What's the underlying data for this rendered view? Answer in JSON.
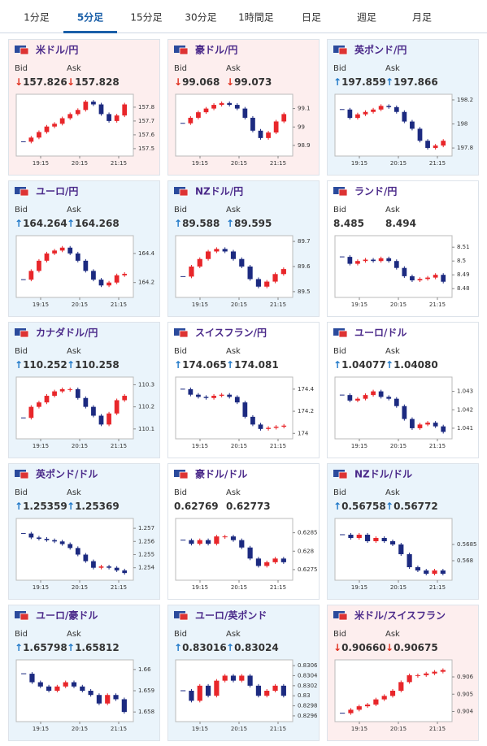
{
  "tabs": {
    "items": [
      "1分足",
      "5分足",
      "15分足",
      "30分足",
      "1時間足",
      "日足",
      "週足",
      "月足"
    ],
    "active": 1
  },
  "bid_label": "Bid",
  "ask_label": "Ask",
  "candle_colors": {
    "up": "#e8262a",
    "down": "#1c2a80"
  },
  "cards": [
    {
      "name": "米ドル/円",
      "bg": "#fdeeee",
      "arrow_color": "#e0301e",
      "bid_arrow": "↓",
      "bid": "157.826",
      "ask_arrow": "↓",
      "ask": "157.828",
      "chart": {
        "ylim": [
          157.47,
          157.87
        ],
        "yticks": [
          157.5,
          157.6,
          157.7,
          157.8
        ],
        "xticks": [
          "19:15",
          "20:15",
          "21:15"
        ],
        "closes": [
          157.55,
          157.58,
          157.62,
          157.66,
          157.68,
          157.72,
          157.75,
          157.78,
          157.84,
          157.82,
          157.75,
          157.7,
          157.74,
          157.82
        ]
      }
    },
    {
      "name": "豪ドル/円",
      "bg": "#fdeeee",
      "arrow_color": "#e0301e",
      "bid_arrow": "↓",
      "bid": "99.068",
      "ask_arrow": "↓",
      "ask": "99.073",
      "chart": {
        "ylim": [
          98.86,
          99.16
        ],
        "yticks": [
          98.9,
          99,
          99.1
        ],
        "xticks": [
          "19:15",
          "20:15",
          "21:15"
        ],
        "closes": [
          99.02,
          99.05,
          99.08,
          99.1,
          99.12,
          99.13,
          99.12,
          99.1,
          99.05,
          98.98,
          98.94,
          98.97,
          99.03,
          99.07
        ]
      }
    },
    {
      "name": "英ポンド/円",
      "bg": "#eaf4fb",
      "arrow_color": "#1f78c8",
      "bid_arrow": "↑",
      "bid": "197.859",
      "ask_arrow": "↑",
      "ask": "197.866",
      "chart": {
        "ylim": [
          197.76,
          198.22
        ],
        "yticks": [
          197.8,
          198,
          198.2
        ],
        "xticks": [
          "19:15",
          "20:15",
          "21:15"
        ],
        "closes": [
          198.12,
          198.05,
          198.08,
          198.1,
          198.12,
          198.15,
          198.14,
          198.1,
          198.02,
          197.96,
          197.86,
          197.8,
          197.82,
          197.86
        ]
      }
    },
    {
      "name": "ユーロ/円",
      "bg": "#eaf4fb",
      "arrow_color": "#1f78c8",
      "bid_arrow": "↑",
      "bid": "164.264",
      "ask_arrow": "↑",
      "ask": "164.268",
      "chart": {
        "ylim": [
          164.12,
          164.5
        ],
        "yticks": [
          164.2,
          164.4
        ],
        "xticks": [
          "19:15",
          "20:15",
          "21:15"
        ],
        "closes": [
          164.22,
          164.28,
          164.35,
          164.4,
          164.42,
          164.44,
          164.4,
          164.35,
          164.28,
          164.22,
          164.18,
          164.2,
          164.25,
          164.26
        ]
      }
    },
    {
      "name": "NZドル/円",
      "bg": "#eaf4fb",
      "arrow_color": "#1f78c8",
      "bid_arrow": "↑",
      "bid": "89.588",
      "ask_arrow": "↑",
      "ask": "89.595",
      "chart": {
        "ylim": [
          89.49,
          89.71
        ],
        "yticks": [
          89.5,
          89.6,
          89.7
        ],
        "xticks": [
          "19:15",
          "20:15",
          "21:15"
        ],
        "closes": [
          89.56,
          89.6,
          89.63,
          89.66,
          89.67,
          89.66,
          89.63,
          89.6,
          89.55,
          89.52,
          89.54,
          89.57,
          89.59
        ]
      }
    },
    {
      "name": "ランド/円",
      "bg": "#ffffff",
      "bid": "8.485",
      "ask": "8.494",
      "chart": {
        "ylim": [
          8.476,
          8.516
        ],
        "yticks": [
          8.48,
          8.49,
          8.5,
          8.51
        ],
        "xticks": [
          "19:15",
          "20:15",
          "21:15"
        ],
        "closes": [
          8.503,
          8.498,
          8.5,
          8.501,
          8.5,
          8.502,
          8.5,
          8.495,
          8.489,
          8.486,
          8.487,
          8.488,
          8.49,
          8.485
        ]
      }
    },
    {
      "name": "カナダドル/円",
      "bg": "#eaf4fb",
      "arrow_color": "#1f78c8",
      "bid_arrow": "↑",
      "bid": "110.252",
      "ask_arrow": "↑",
      "ask": "110.258",
      "chart": {
        "ylim": [
          110.07,
          110.32
        ],
        "yticks": [
          110.1,
          110.2,
          110.3
        ],
        "xticks": [
          "19:15",
          "20:15",
          "21:15"
        ],
        "closes": [
          110.15,
          110.2,
          110.22,
          110.25,
          110.27,
          110.28,
          110.28,
          110.24,
          110.2,
          110.16,
          110.12,
          110.17,
          110.23,
          110.25
        ]
      }
    },
    {
      "name": "スイスフラン/円",
      "bg": "#ffffff",
      "arrow_color": "#1f78c8",
      "bid_arrow": "↑",
      "bid": "174.065",
      "ask_arrow": "↑",
      "ask": "174.081",
      "chart": {
        "ylim": [
          173.98,
          174.48
        ],
        "yticks": [
          174,
          174.2,
          174.4
        ],
        "xticks": [
          "19:15",
          "20:15",
          "21:15"
        ],
        "closes": [
          174.4,
          174.35,
          174.33,
          174.32,
          174.34,
          174.35,
          174.33,
          174.28,
          174.15,
          174.08,
          174.04,
          174.05,
          174.06,
          174.07
        ]
      }
    },
    {
      "name": "ユーロ/ドル",
      "bg": "#ffffff",
      "arrow_color": "#1f78c8",
      "bid_arrow": "↑",
      "bid": "1.04077",
      "ask_arrow": "↑",
      "ask": "1.04080",
      "chart": {
        "ylim": [
          1.0406,
          1.0436
        ],
        "yticks": [
          1.041,
          1.042,
          1.043
        ],
        "xticks": [
          "19:15",
          "20:15",
          "21:15"
        ],
        "closes": [
          1.0428,
          1.0425,
          1.0426,
          1.0428,
          1.043,
          1.0427,
          1.0426,
          1.0422,
          1.0415,
          1.041,
          1.0412,
          1.0413,
          1.0411,
          1.0408
        ]
      }
    },
    {
      "name": "英ポンド/ドル",
      "bg": "#eaf4fb",
      "arrow_color": "#1f78c8",
      "bid_arrow": "↑",
      "bid": "1.25359",
      "ask_arrow": "↑",
      "ask": "1.25369",
      "chart": {
        "ylim": [
          1.2533,
          1.2575
        ],
        "yticks": [
          1.254,
          1.255,
          1.256,
          1.257
        ],
        "xticks": [
          "19:15",
          "20:15",
          "21:15"
        ],
        "closes": [
          1.2566,
          1.2563,
          1.2562,
          1.2561,
          1.256,
          1.2558,
          1.2555,
          1.255,
          1.2545,
          1.254,
          1.2541,
          1.254,
          1.2538,
          1.2536
        ]
      }
    },
    {
      "name": "豪ドル/ドル",
      "bg": "#ffffff",
      "bid": "0.62769",
      "ask": "0.62773",
      "chart": {
        "ylim": [
          0.6273,
          0.6288
        ],
        "yticks": [
          0.6275,
          0.628,
          0.6285
        ],
        "xticks": [
          "19:15",
          "20:15",
          "21:15"
        ],
        "closes": [
          0.6283,
          0.6282,
          0.6283,
          0.6282,
          0.6284,
          0.6284,
          0.6283,
          0.6281,
          0.6278,
          0.6276,
          0.6277,
          0.6278,
          0.6277
        ]
      }
    },
    {
      "name": "NZドル/ドル",
      "bg": "#eaf4fb",
      "arrow_color": "#1f78c8",
      "bid_arrow": "↑",
      "bid": "0.56758",
      "ask_arrow": "↑",
      "ask": "0.56772",
      "chart": {
        "ylim": [
          0.5675,
          0.5692
        ],
        "yticks": [
          0.568,
          0.5685
        ],
        "xticks": [
          "19:15",
          "20:15",
          "21:15"
        ],
        "closes": [
          0.5688,
          0.5687,
          0.5688,
          0.5686,
          0.5687,
          0.5686,
          0.5685,
          0.5682,
          0.5678,
          0.5677,
          0.5676,
          0.5677,
          0.5676
        ]
      }
    },
    {
      "name": "ユーロ/豪ドル",
      "bg": "#eaf4fb",
      "arrow_color": "#1f78c8",
      "bid_arrow": "↑",
      "bid": "1.65798",
      "ask_arrow": "↑",
      "ask": "1.65812",
      "chart": {
        "ylim": [
          1.6577,
          1.6603
        ],
        "yticks": [
          1.658,
          1.659,
          1.66
        ],
        "xticks": [
          "19:15",
          "20:15",
          "21:15"
        ],
        "closes": [
          1.6598,
          1.6594,
          1.6592,
          1.659,
          1.6592,
          1.6594,
          1.6592,
          1.659,
          1.6588,
          1.6584,
          1.6588,
          1.6586,
          1.658
        ]
      }
    },
    {
      "name": "ユーロ/英ポンド",
      "bg": "#eaf4fb",
      "arrow_color": "#1f78c8",
      "bid_arrow": "↑",
      "bid": "0.83016",
      "ask_arrow": "↑",
      "ask": "0.83024",
      "chart": {
        "ylim": [
          0.82955,
          0.83065
        ],
        "yticks": [
          0.8296,
          0.8298,
          0.83,
          0.8302,
          0.8304,
          0.8306
        ],
        "xticks": [
          "19:15",
          "20:15",
          "21:15"
        ],
        "closes": [
          0.8301,
          0.8299,
          0.8302,
          0.83,
          0.8303,
          0.8304,
          0.8303,
          0.8304,
          0.8302,
          0.83,
          0.8301,
          0.8302,
          0.83
        ]
      }
    },
    {
      "name": "米ドル/スイスフラン",
      "bg": "#fdeeee",
      "arrow_color": "#e0301e",
      "bid_arrow": "↓",
      "bid": "0.90660",
      "ask_arrow": "↓",
      "ask": "0.90675",
      "chart": {
        "ylim": [
          0.9036,
          0.9068
        ],
        "yticks": [
          0.904,
          0.905,
          0.906
        ],
        "xticks": [
          "19:15",
          "20:15",
          "21:15"
        ],
        "closes": [
          0.9039,
          0.9041,
          0.9043,
          0.9044,
          0.9047,
          0.9049,
          0.9052,
          0.9057,
          0.9061,
          0.9061,
          0.9062,
          0.9063,
          0.9064
        ]
      }
    }
  ]
}
